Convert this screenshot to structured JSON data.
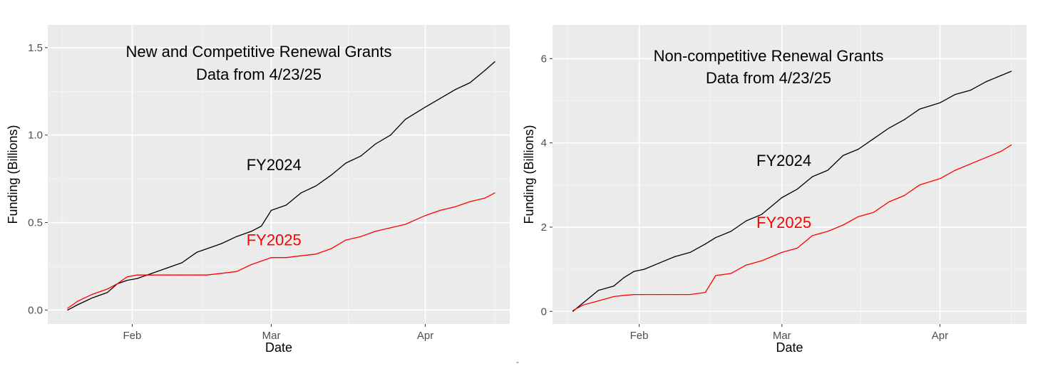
{
  "chart_data": [
    {
      "type": "line",
      "title_lines": [
        "New and Competitive Renewal Grants",
        "Data from 4/23/25"
      ],
      "xlabel": "Date",
      "ylabel": "Funding (Billions)",
      "x_domain": [
        "2025-01-15",
        "2025-04-18"
      ],
      "x_ticks": [
        {
          "date": "2025-02-01",
          "label": "Feb"
        },
        {
          "date": "2025-03-01",
          "label": "Mar"
        },
        {
          "date": "2025-04-01",
          "label": "Apr"
        }
      ],
      "ylim": [
        -0.08,
        1.63
      ],
      "y_ticks": [
        {
          "value": 0.0,
          "label": "0.0"
        },
        {
          "value": 0.5,
          "label": "0.5"
        },
        {
          "value": 1.0,
          "label": "1.0"
        },
        {
          "value": 1.5,
          "label": "1.5"
        }
      ],
      "grid": true,
      "series": [
        {
          "name": "FY2024",
          "color": "#000000",
          "label_at": {
            "date": "2025-02-24",
            "value": 0.8
          },
          "x": [
            "2025-01-19",
            "2025-01-21",
            "2025-01-24",
            "2025-01-27",
            "2025-01-29",
            "2025-01-31",
            "2025-02-02",
            "2025-02-05",
            "2025-02-08",
            "2025-02-11",
            "2025-02-14",
            "2025-02-16",
            "2025-02-19",
            "2025-02-22",
            "2025-02-25",
            "2025-02-27",
            "2025-03-01",
            "2025-03-04",
            "2025-03-07",
            "2025-03-10",
            "2025-03-13",
            "2025-03-16",
            "2025-03-19",
            "2025-03-22",
            "2025-03-25",
            "2025-03-28",
            "2025-04-01",
            "2025-04-04",
            "2025-04-07",
            "2025-04-10",
            "2025-04-13",
            "2025-04-15"
          ],
          "values": [
            0.0,
            0.03,
            0.07,
            0.1,
            0.15,
            0.17,
            0.18,
            0.21,
            0.24,
            0.27,
            0.33,
            0.35,
            0.38,
            0.42,
            0.45,
            0.48,
            0.57,
            0.6,
            0.67,
            0.71,
            0.77,
            0.84,
            0.88,
            0.95,
            1.0,
            1.09,
            1.16,
            1.21,
            1.26,
            1.3,
            1.37,
            1.42
          ]
        },
        {
          "name": "FY2025",
          "color": "#ff0000",
          "label_at": {
            "date": "2025-02-24",
            "value": 0.37
          },
          "x": [
            "2025-01-19",
            "2025-01-21",
            "2025-01-24",
            "2025-01-27",
            "2025-01-29",
            "2025-01-31",
            "2025-02-02",
            "2025-02-05",
            "2025-02-08",
            "2025-02-11",
            "2025-02-14",
            "2025-02-16",
            "2025-02-19",
            "2025-02-22",
            "2025-02-25",
            "2025-02-27",
            "2025-03-01",
            "2025-03-04",
            "2025-03-07",
            "2025-03-10",
            "2025-03-13",
            "2025-03-16",
            "2025-03-19",
            "2025-03-22",
            "2025-03-25",
            "2025-03-28",
            "2025-04-01",
            "2025-04-04",
            "2025-04-07",
            "2025-04-10",
            "2025-04-13",
            "2025-04-15"
          ],
          "values": [
            0.01,
            0.05,
            0.09,
            0.12,
            0.15,
            0.19,
            0.2,
            0.2,
            0.2,
            0.2,
            0.2,
            0.2,
            0.21,
            0.22,
            0.26,
            0.28,
            0.3,
            0.3,
            0.31,
            0.32,
            0.35,
            0.4,
            0.42,
            0.45,
            0.47,
            0.49,
            0.54,
            0.57,
            0.59,
            0.62,
            0.64,
            0.67
          ]
        }
      ]
    },
    {
      "type": "line",
      "title_lines": [
        "Non-competitive Renewal Grants",
        "Data from 4/23/25"
      ],
      "xlabel": "Date",
      "ylabel": "Funding (Billions)",
      "x_domain": [
        "2025-01-15",
        "2025-04-18"
      ],
      "x_ticks": [
        {
          "date": "2025-02-01",
          "label": "Feb"
        },
        {
          "date": "2025-03-01",
          "label": "Mar"
        },
        {
          "date": "2025-04-01",
          "label": "Apr"
        }
      ],
      "ylim": [
        -0.3,
        6.8
      ],
      "y_ticks": [
        {
          "value": 0,
          "label": "0"
        },
        {
          "value": 2,
          "label": "2"
        },
        {
          "value": 4,
          "label": "4"
        },
        {
          "value": 6,
          "label": "6"
        }
      ],
      "grid": true,
      "series": [
        {
          "name": "FY2024",
          "color": "#000000",
          "label_at": {
            "date": "2025-02-24",
            "value": 3.45
          },
          "x": [
            "2025-01-19",
            "2025-01-21",
            "2025-01-24",
            "2025-01-27",
            "2025-01-29",
            "2025-01-31",
            "2025-02-02",
            "2025-02-05",
            "2025-02-08",
            "2025-02-11",
            "2025-02-14",
            "2025-02-16",
            "2025-02-19",
            "2025-02-22",
            "2025-02-25",
            "2025-02-27",
            "2025-03-01",
            "2025-03-04",
            "2025-03-07",
            "2025-03-10",
            "2025-03-13",
            "2025-03-16",
            "2025-03-19",
            "2025-03-22",
            "2025-03-25",
            "2025-03-28",
            "2025-04-01",
            "2025-04-04",
            "2025-04-07",
            "2025-04-10",
            "2025-04-13",
            "2025-04-15"
          ],
          "values": [
            0.0,
            0.2,
            0.5,
            0.6,
            0.8,
            0.95,
            1.0,
            1.15,
            1.3,
            1.4,
            1.6,
            1.75,
            1.9,
            2.15,
            2.3,
            2.5,
            2.7,
            2.9,
            3.2,
            3.35,
            3.7,
            3.85,
            4.1,
            4.35,
            4.55,
            4.8,
            4.95,
            5.15,
            5.25,
            5.45,
            5.6,
            5.7
          ]
        },
        {
          "name": "FY2025",
          "color": "#ff0000",
          "label_at": {
            "date": "2025-02-24",
            "value": 1.98
          },
          "x": [
            "2025-01-19",
            "2025-01-21",
            "2025-01-24",
            "2025-01-27",
            "2025-01-29",
            "2025-01-31",
            "2025-02-02",
            "2025-02-05",
            "2025-02-08",
            "2025-02-11",
            "2025-02-14",
            "2025-02-16",
            "2025-02-19",
            "2025-02-22",
            "2025-02-25",
            "2025-02-27",
            "2025-03-01",
            "2025-03-04",
            "2025-03-07",
            "2025-03-10",
            "2025-03-13",
            "2025-03-16",
            "2025-03-19",
            "2025-03-22",
            "2025-03-25",
            "2025-03-28",
            "2025-04-01",
            "2025-04-04",
            "2025-04-07",
            "2025-04-10",
            "2025-04-13",
            "2025-04-15"
          ],
          "values": [
            0.02,
            0.15,
            0.25,
            0.35,
            0.38,
            0.4,
            0.4,
            0.4,
            0.4,
            0.4,
            0.45,
            0.85,
            0.9,
            1.1,
            1.2,
            1.3,
            1.4,
            1.5,
            1.8,
            1.9,
            2.05,
            2.25,
            2.35,
            2.6,
            2.75,
            3.0,
            3.15,
            3.35,
            3.5,
            3.65,
            3.8,
            3.95
          ]
        }
      ]
    }
  ],
  "footer_mark": "-"
}
